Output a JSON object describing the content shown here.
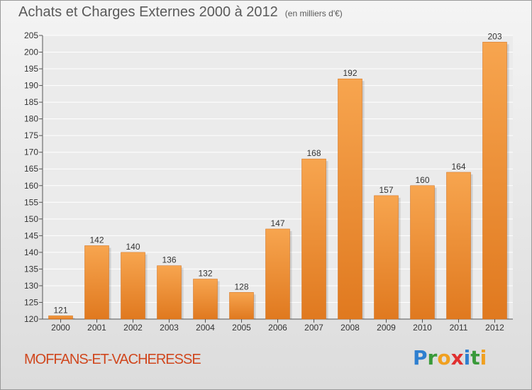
{
  "header": {
    "title": "Achats et Charges Externes 2000 à 2012",
    "subtitle": "(en milliers d'€)"
  },
  "footer": {
    "commune": "MOFFANS-ET-VACHERESSE",
    "logo_letters": [
      "P",
      "r",
      "o",
      "x",
      "i",
      "t",
      "i"
    ],
    "logo_colors": [
      "#2e7fd0",
      "#3a9a3a",
      "#f0a020",
      "#e03030",
      "#2e7fd0",
      "#3a9a3a",
      "#f0a020"
    ]
  },
  "colors": {
    "bar_light": "#f7a54f",
    "bar_dark": "#e0791f",
    "commune": "#d0471e"
  },
  "chart_data": {
    "type": "bar",
    "title": "Achats et Charges Externes 2000 à 2012",
    "subtitle": "(en milliers d'€)",
    "categories": [
      "2000",
      "2001",
      "2002",
      "2003",
      "2004",
      "2005",
      "2006",
      "2007",
      "2008",
      "2009",
      "2010",
      "2011",
      "2012"
    ],
    "values": [
      121,
      142,
      140,
      136,
      132,
      128,
      147,
      168,
      192,
      157,
      160,
      164,
      203
    ],
    "ylim": [
      120,
      205
    ],
    "yticks": [
      120,
      125,
      130,
      135,
      140,
      145,
      150,
      155,
      160,
      165,
      170,
      175,
      180,
      185,
      190,
      195,
      200,
      205
    ],
    "grid": true,
    "data_labels": true
  }
}
